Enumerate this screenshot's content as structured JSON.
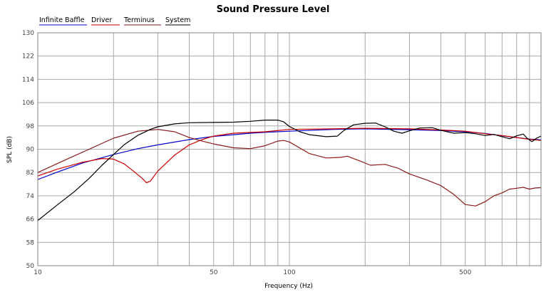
{
  "chart_data": {
    "type": "line",
    "title": "Sound Pressure Level",
    "xlabel": "Frequency (Hz)",
    "ylabel": "SPL (dB)",
    "xscale": "log",
    "xlim": [
      10,
      1000
    ],
    "ylim": [
      50,
      130
    ],
    "yticks": [
      50,
      58,
      66,
      74,
      82,
      90,
      98,
      106,
      114,
      122,
      130
    ],
    "xtick_labels": [
      {
        "value": 10,
        "label": "10"
      },
      {
        "value": 50,
        "label": "50"
      },
      {
        "value": 100,
        "label": "100"
      },
      {
        "value": 500,
        "label": "500"
      }
    ],
    "grid": true,
    "legend_position": "top-left",
    "series": [
      {
        "name": "Infinite Baffle",
        "color": "#0000cc",
        "points": [
          [
            10,
            79.6
          ],
          [
            12,
            82.2
          ],
          [
            15,
            85.2
          ],
          [
            20,
            88.2
          ],
          [
            25,
            90.2
          ],
          [
            30,
            91.5
          ],
          [
            40,
            93.3
          ],
          [
            50,
            94.4
          ],
          [
            60,
            95.0
          ],
          [
            70,
            95.5
          ],
          [
            80,
            95.8
          ],
          [
            100,
            96.2
          ],
          [
            150,
            96.8
          ],
          [
            200,
            97.0
          ],
          [
            300,
            96.7
          ],
          [
            400,
            96.4
          ],
          [
            500,
            96.0
          ],
          [
            600,
            95.4
          ],
          [
            700,
            94.6
          ],
          [
            800,
            94.0
          ],
          [
            900,
            93.5
          ],
          [
            1000,
            93.2
          ]
        ]
      },
      {
        "name": "Driver",
        "color": "#cc0000",
        "points": [
          [
            10,
            80.8
          ],
          [
            12,
            83.2
          ],
          [
            15,
            85.5
          ],
          [
            18,
            86.8
          ],
          [
            20,
            86.6
          ],
          [
            22,
            85.0
          ],
          [
            24,
            82.5
          ],
          [
            26,
            80.0
          ],
          [
            27,
            78.5
          ],
          [
            28,
            79.0
          ],
          [
            30,
            82.5
          ],
          [
            35,
            88.0
          ],
          [
            40,
            91.5
          ],
          [
            45,
            93.3
          ],
          [
            50,
            94.5
          ],
          [
            60,
            95.5
          ],
          [
            80,
            96.0
          ],
          [
            100,
            96.8
          ],
          [
            150,
            97.0
          ],
          [
            200,
            97.2
          ],
          [
            300,
            97.0
          ],
          [
            400,
            96.6
          ],
          [
            500,
            96.2
          ],
          [
            600,
            95.3
          ],
          [
            700,
            94.7
          ],
          [
            800,
            94.0
          ],
          [
            900,
            93.4
          ],
          [
            1000,
            93.0
          ]
        ]
      },
      {
        "name": "Terminus",
        "color": "#8b1a1a",
        "points": [
          [
            10,
            82.0
          ],
          [
            13,
            86.5
          ],
          [
            16,
            90.0
          ],
          [
            20,
            93.8
          ],
          [
            25,
            96.2
          ],
          [
            30,
            96.8
          ],
          [
            35,
            96.0
          ],
          [
            40,
            94.0
          ],
          [
            45,
            92.8
          ],
          [
            50,
            91.8
          ],
          [
            60,
            90.5
          ],
          [
            70,
            90.2
          ],
          [
            80,
            91.2
          ],
          [
            90,
            92.8
          ],
          [
            95,
            93.0
          ],
          [
            100,
            92.5
          ],
          [
            120,
            88.5
          ],
          [
            140,
            87.0
          ],
          [
            160,
            87.2
          ],
          [
            170,
            87.6
          ],
          [
            190,
            86.0
          ],
          [
            210,
            84.5
          ],
          [
            240,
            84.8
          ],
          [
            270,
            83.5
          ],
          [
            300,
            81.5
          ],
          [
            350,
            79.5
          ],
          [
            400,
            77.5
          ],
          [
            450,
            74.5
          ],
          [
            500,
            71.0
          ],
          [
            550,
            70.5
          ],
          [
            600,
            72.0
          ],
          [
            650,
            74.0
          ],
          [
            700,
            75.0
          ],
          [
            750,
            76.3
          ],
          [
            800,
            76.6
          ],
          [
            850,
            76.9
          ],
          [
            900,
            76.3
          ],
          [
            950,
            76.7
          ],
          [
            1000,
            76.8
          ]
        ]
      },
      {
        "name": "System",
        "color": "#000000",
        "points": [
          [
            10,
            65.5
          ],
          [
            12,
            71.0
          ],
          [
            14,
            75.5
          ],
          [
            16,
            80.0
          ],
          [
            18,
            84.5
          ],
          [
            20,
            88.2
          ],
          [
            22,
            91.5
          ],
          [
            25,
            94.8
          ],
          [
            28,
            96.8
          ],
          [
            30,
            97.7
          ],
          [
            35,
            98.7
          ],
          [
            40,
            99.1
          ],
          [
            50,
            99.2
          ],
          [
            60,
            99.3
          ],
          [
            70,
            99.6
          ],
          [
            80,
            100.0
          ],
          [
            90,
            100.0
          ],
          [
            95,
            99.4
          ],
          [
            100,
            97.8
          ],
          [
            110,
            96.0
          ],
          [
            120,
            95.0
          ],
          [
            140,
            94.3
          ],
          [
            155,
            94.5
          ],
          [
            165,
            96.5
          ],
          [
            180,
            98.4
          ],
          [
            200,
            98.9
          ],
          [
            220,
            99.0
          ],
          [
            240,
            97.7
          ],
          [
            260,
            96.2
          ],
          [
            280,
            95.5
          ],
          [
            300,
            96.3
          ],
          [
            330,
            97.3
          ],
          [
            370,
            97.4
          ],
          [
            400,
            96.5
          ],
          [
            450,
            95.5
          ],
          [
            500,
            95.7
          ],
          [
            550,
            95.3
          ],
          [
            600,
            94.7
          ],
          [
            650,
            95.1
          ],
          [
            700,
            94.3
          ],
          [
            750,
            93.6
          ],
          [
            800,
            94.6
          ],
          [
            850,
            95.2
          ],
          [
            880,
            93.8
          ],
          [
            920,
            92.6
          ],
          [
            960,
            93.8
          ],
          [
            1000,
            94.5
          ]
        ]
      }
    ]
  }
}
